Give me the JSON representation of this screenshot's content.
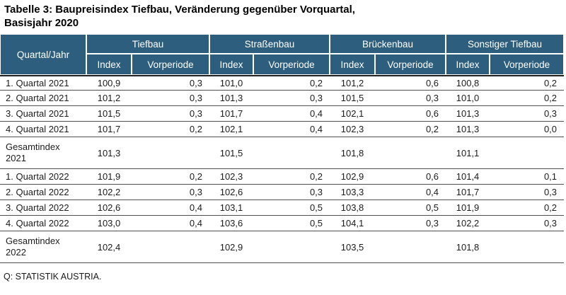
{
  "title": {
    "line1": "Tabelle 3: Baupreisindex Tiefbau, Veränderung gegenüber Vorquartal,",
    "line2": "Basisjahr 2020"
  },
  "table": {
    "corner_header": "Quartal/Jahr",
    "groups": [
      {
        "label": "Tiefbau",
        "columns": [
          "Index",
          "Vorperiode"
        ]
      },
      {
        "label": "Straßenbau",
        "columns": [
          "Index",
          "Vorperiode"
        ]
      },
      {
        "label": "Brückenbau",
        "columns": [
          "Index",
          "Vorperiode"
        ]
      },
      {
        "label": "Sonstiger Tiefbau",
        "columns": [
          "Index",
          "Vorperiode"
        ]
      }
    ],
    "rows": [
      {
        "label": "1. Quartal 2021",
        "total": false,
        "values": [
          "100,9",
          "0,3",
          "101,0",
          "0,2",
          "101,2",
          "0,6",
          "100,8",
          "0,2"
        ]
      },
      {
        "label": "2. Quartal 2021",
        "total": false,
        "values": [
          "101,2",
          "0,3",
          "101,3",
          "0,3",
          "101,5",
          "0,3",
          "101,0",
          "0,2"
        ]
      },
      {
        "label": "3. Quartal 2021",
        "total": false,
        "values": [
          "101,5",
          "0,3",
          "101,7",
          "0,4",
          "102,1",
          "0,6",
          "101,3",
          "0,3"
        ]
      },
      {
        "label": "4. Quartal 2021",
        "total": false,
        "values": [
          "101,7",
          "0,2",
          "102,1",
          "0,4",
          "102,3",
          "0,2",
          "101,3",
          "0,0"
        ]
      },
      {
        "label": "Gesamtindex\n2021",
        "total": true,
        "values": [
          "101,3",
          "",
          "101,5",
          "",
          "101,8",
          "",
          "101,1",
          ""
        ]
      },
      {
        "label": "1. Quartal 2022",
        "total": false,
        "values": [
          "101,9",
          "0,2",
          "102,3",
          "0,2",
          "102,9",
          "0,6",
          "101,4",
          "0,1"
        ]
      },
      {
        "label": "2. Quartal 2022",
        "total": false,
        "values": [
          "102,2",
          "0,3",
          "102,6",
          "0,3",
          "103,3",
          "0,4",
          "101,7",
          "0,3"
        ]
      },
      {
        "label": "3. Quartal 2022",
        "total": false,
        "values": [
          "102,6",
          "0,4",
          "103,1",
          "0,5",
          "103,8",
          "0,5",
          "101,9",
          "0,2"
        ]
      },
      {
        "label": "4. Quartal 2022",
        "total": false,
        "values": [
          "103,0",
          "0,4",
          "103,6",
          "0,5",
          "104,1",
          "0,3",
          "102,2",
          "0,3"
        ]
      },
      {
        "label": "Gesamtindex\n2022",
        "total": true,
        "values": [
          "102,4",
          "",
          "102,9",
          "",
          "103,5",
          "",
          "101,8",
          ""
        ]
      }
    ]
  },
  "footer": {
    "source": "Q: STATISTIK AUSTRIA."
  },
  "colors": {
    "header_bg": "#2D5E7D",
    "header_text": "#FFFFFF",
    "row_line": "#4F4F4F",
    "header_divider": "#1F1F1F",
    "text": "#1C1C1C"
  }
}
